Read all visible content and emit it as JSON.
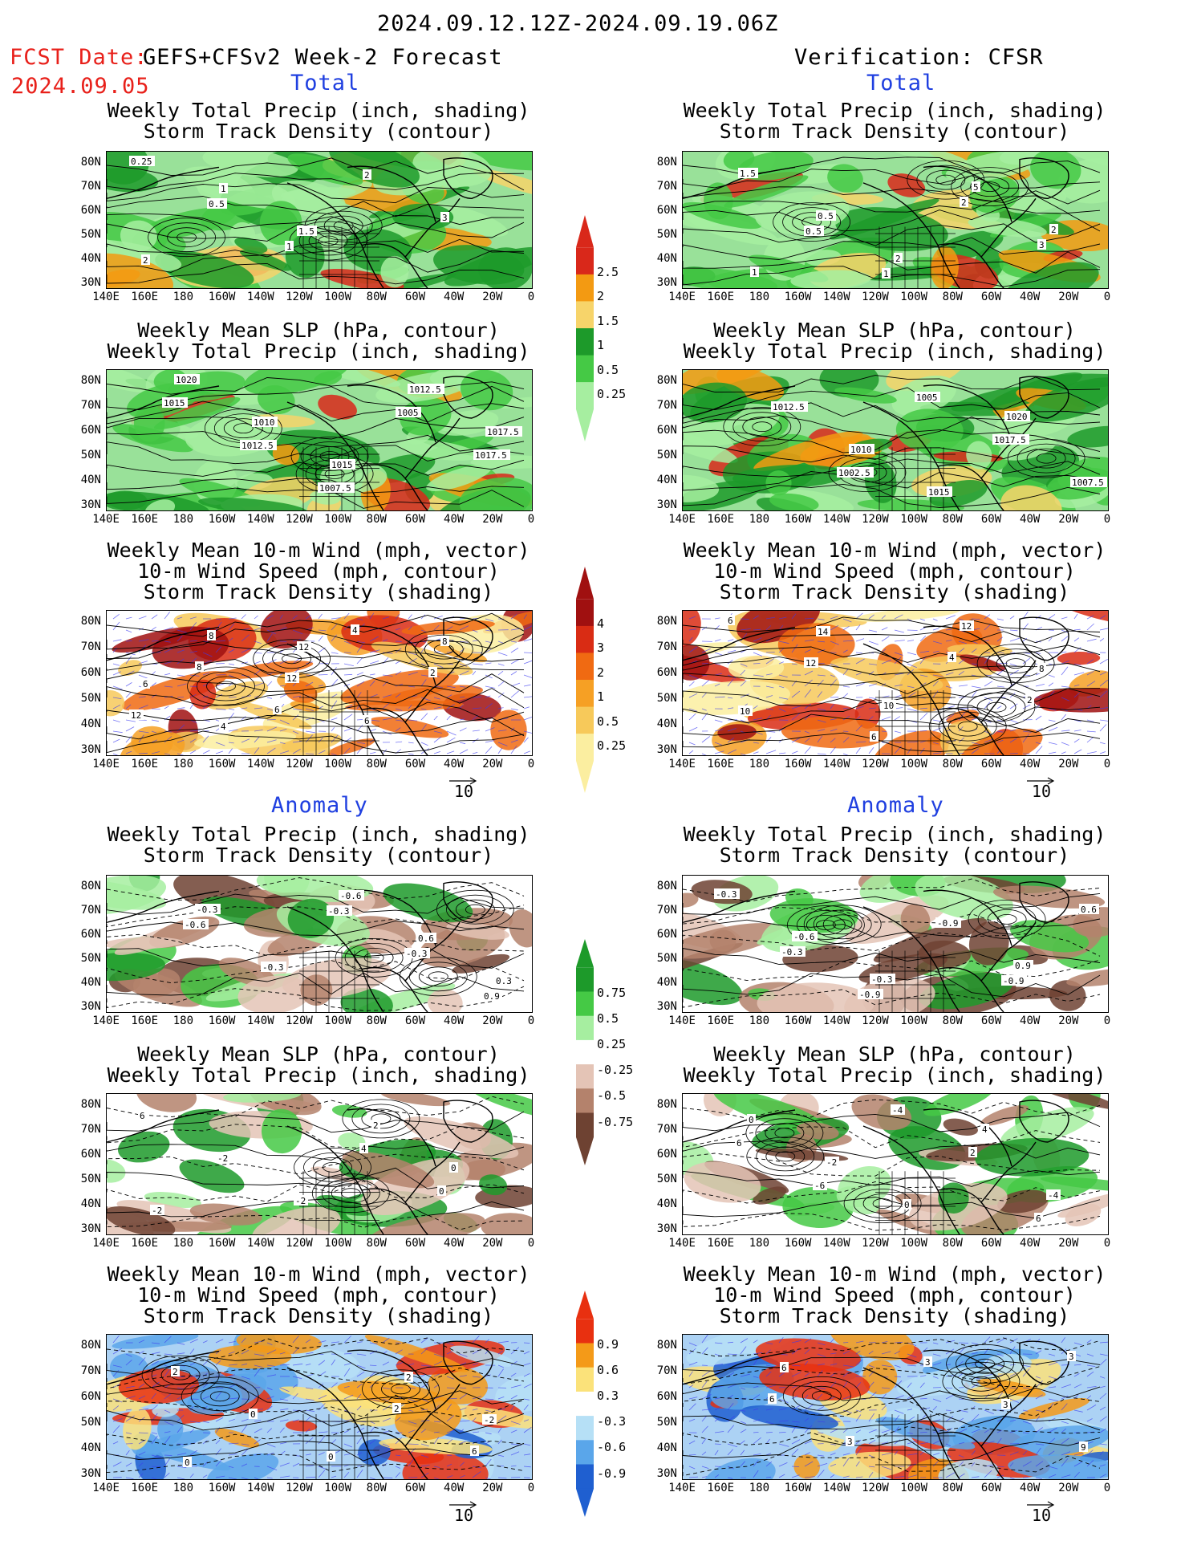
{
  "header": {
    "date_range": "2024.09.12.12Z-2024.09.19.06Z",
    "fcst_prefix": "FCST Date:",
    "fcst_model": "GEFS+CFSv2 Week-2 Forecast",
    "fcst_date": "2024.09.05",
    "verification": "Verification: CFSR"
  },
  "sections": {
    "total": "Total",
    "anomaly": "Anomaly"
  },
  "panel_titles": {
    "precip_storm": [
      "Weekly Total Precip (inch, shading)",
      "Storm Track Density (contour)"
    ],
    "slp_precip": [
      "Weekly Mean SLP (hPa, contour)",
      "Weekly Total Precip (inch, shading)"
    ],
    "wind_storm": [
      "Weekly Mean 10-m Wind (mph, vector)",
      "10-m Wind Speed (mph, contour)",
      "Storm Track Density (shading)"
    ]
  },
  "axes": {
    "lat_ticks": [
      "80N",
      "70N",
      "60N",
      "50N",
      "40N",
      "30N"
    ],
    "lon_ticks": [
      "140E",
      "160E",
      "180",
      "160W",
      "140W",
      "120W",
      "100W",
      "80W",
      "60W",
      "40W",
      "20W",
      "0"
    ]
  },
  "vector_scale_label": "10",
  "colorbars": {
    "total_precip": {
      "labels": [
        "2.5",
        "2",
        "1.5",
        "1",
        "0.5",
        "0.25"
      ],
      "colors": [
        "#d9281a",
        "#f39a12",
        "#f7d46a",
        "#1d9a2a",
        "#45c945",
        "#a6eea0"
      ]
    },
    "total_storm": {
      "labels": [
        "4",
        "3",
        "2",
        "1",
        "0.5",
        "0.25"
      ],
      "colors": [
        "#a01010",
        "#d92c14",
        "#f06a12",
        "#f6a024",
        "#f7c95a",
        "#fbeea0"
      ]
    },
    "anom_precip": {
      "labels": [
        "0.75",
        "0.5",
        "0.25",
        "-0.25",
        "-0.5",
        "-0.75"
      ],
      "colors": [
        "#1d9a2a",
        "#45c945",
        "#a6eea0",
        "#ffffff",
        "#e4c4b6",
        "#b4826c",
        "#6e4232"
      ]
    },
    "anom_storm": {
      "labels": [
        "0.9",
        "0.6",
        "0.3",
        "-0.3",
        "-0.6",
        "-0.9"
      ],
      "colors": [
        "#e83010",
        "#f49a18",
        "#fbe27a",
        "#ffffff",
        "#b6e0f6",
        "#5aa6ea",
        "#1f5fd0"
      ]
    }
  },
  "panels": [
    {
      "id": "fc-tot-precip",
      "kind": "precip",
      "contour_labels": [
        "0.25",
        "0.5",
        "1",
        "2",
        "3",
        "2",
        "1",
        "1.5"
      ]
    },
    {
      "id": "fc-tot-slp",
      "kind": "precip",
      "contour_labels": [
        "1015",
        "1012.5",
        "1007.5",
        "1005",
        "1017.5",
        "1020",
        "1010",
        "1015",
        "1012.5",
        "1017.5"
      ]
    },
    {
      "id": "fc-tot-wind",
      "kind": "storm",
      "contour_labels": [
        "8",
        "6",
        "4",
        "2",
        "12",
        "8",
        "12",
        "6",
        "8",
        "6",
        "4",
        "12"
      ]
    },
    {
      "id": "vf-tot-precip",
      "kind": "precip",
      "contour_labels": [
        "0.5",
        "1",
        "2",
        "3",
        "1.5",
        "0.5",
        "2",
        "5",
        "2",
        "1"
      ]
    },
    {
      "id": "vf-tot-slp",
      "kind": "precip",
      "contour_labels": [
        "1002.5",
        "1005",
        "1017.5",
        "1007.5",
        "1012.5",
        "1010",
        "1015",
        "1020"
      ]
    },
    {
      "id": "vf-tot-wind",
      "kind": "storm",
      "contour_labels": [
        "6",
        "4",
        "2",
        "6",
        "12",
        "10",
        "12",
        "8",
        "10",
        "14"
      ]
    },
    {
      "id": "fc-an-precip",
      "kind": "aprecip",
      "contour_labels": [
        "-0.3",
        "-0.3",
        "0.9",
        "-0.6",
        "-0.3",
        "-0.6",
        "0.6",
        "0.3",
        "-0.3"
      ]
    },
    {
      "id": "fc-an-slp",
      "kind": "aprecip",
      "contour_labels": [
        "4",
        "0",
        "6",
        "-2",
        "-2",
        "2",
        "0",
        "-2"
      ]
    },
    {
      "id": "fc-an-wind",
      "kind": "astorm",
      "contour_labels": [
        "2",
        "6",
        "2",
        "0",
        "0",
        "2",
        "-2",
        "0"
      ]
    },
    {
      "id": "vf-an-precip",
      "kind": "aprecip",
      "contour_labels": [
        "-0.9",
        "0.6",
        "-0.3",
        "-0.9",
        "-0.9",
        "0.9",
        "-0.3",
        "-0.6",
        "-0.3"
      ]
    },
    {
      "id": "vf-an-slp",
      "kind": "aprecip",
      "contour_labels": [
        "6",
        "6",
        "-6",
        "-4",
        "2",
        "-4",
        "0",
        "-2",
        "0",
        "4"
      ]
    },
    {
      "id": "vf-an-wind",
      "kind": "astorm",
      "contour_labels": [
        "3",
        "6",
        "3",
        "3",
        "3",
        "9",
        "6"
      ]
    }
  ]
}
